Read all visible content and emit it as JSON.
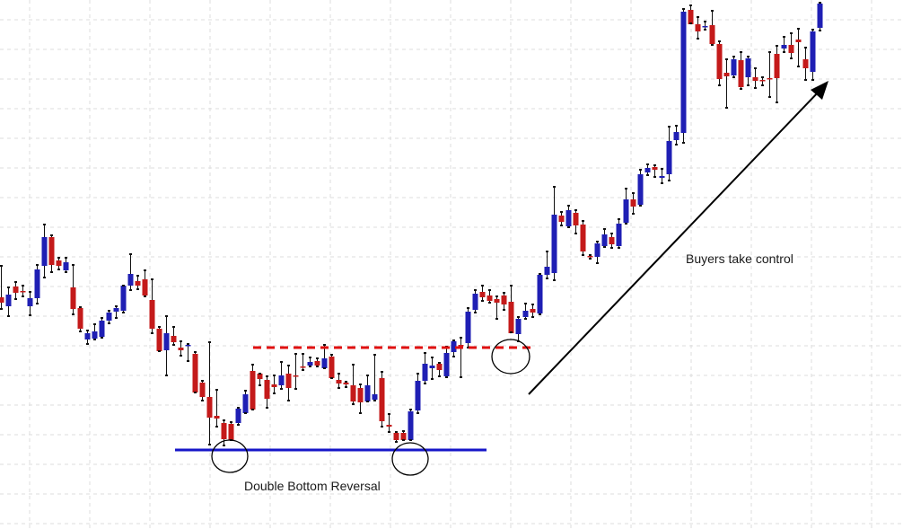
{
  "chart_data": {
    "type": "candlestick",
    "colors": {
      "up": "#1f1fb4",
      "down": "#c41a1a",
      "wick": "#111111",
      "grid": "#dcdcdc",
      "support": "#1616c8",
      "resistance": "#e01010",
      "arrow": "#000000"
    },
    "grid": true,
    "ylim": [
      0,
      589
    ],
    "annotations": {
      "double_bottom": "Double Bottom Reversal",
      "buyers": "Buyers take control"
    },
    "levels": {
      "support": 501,
      "neckline": 387
    },
    "candles": [
      [
        1,
        331,
        296,
        344,
        337
      ],
      [
        9,
        341,
        320,
        352,
        328
      ],
      [
        17,
        319,
        314,
        333,
        326
      ],
      [
        25,
        324,
        318,
        330,
        325
      ],
      [
        33,
        341,
        325,
        351,
        332
      ],
      [
        41,
        332,
        295,
        338,
        300
      ],
      [
        49,
        296,
        250,
        309,
        264
      ],
      [
        57,
        264,
        262,
        303,
        295
      ],
      [
        65,
        290,
        287,
        300,
        296
      ],
      [
        73,
        301,
        287,
        303,
        292
      ],
      [
        81,
        320,
        295,
        350,
        344
      ],
      [
        89,
        343,
        342,
        369,
        366
      ],
      [
        97,
        378,
        368,
        383,
        371
      ],
      [
        105,
        377,
        361,
        378,
        369
      ],
      [
        113,
        375,
        354,
        376,
        357
      ],
      [
        121,
        357,
        346,
        360,
        348
      ],
      [
        129,
        347,
        341,
        354,
        343
      ],
      [
        137,
        346,
        318,
        348,
        318
      ],
      [
        145,
        318,
        283,
        323,
        305
      ],
      [
        153,
        313,
        307,
        322,
        318
      ],
      [
        161,
        311,
        301,
        330,
        329
      ],
      [
        169,
        334,
        311,
        371,
        366
      ],
      [
        177,
        366,
        364,
        391,
        391
      ],
      [
        185,
        390,
        352,
        418,
        371
      ],
      [
        193,
        374,
        364,
        384,
        381
      ],
      [
        201,
        387,
        380,
        396,
        390
      ],
      [
        209,
        385,
        383,
        402,
        384
      ],
      [
        217,
        394,
        392,
        437,
        437
      ],
      [
        225,
        426,
        424,
        446,
        442
      ],
      [
        233,
        442,
        381,
        495,
        465
      ],
      [
        241,
        463,
        434,
        475,
        466
      ],
      [
        249,
        471,
        468,
        496,
        489
      ],
      [
        257,
        472,
        470,
        490,
        490
      ],
      [
        265,
        471,
        454,
        473,
        455
      ],
      [
        273,
        460,
        435,
        460,
        439
      ],
      [
        281,
        413,
        406,
        456,
        456
      ],
      [
        289,
        416,
        416,
        429,
        422
      ],
      [
        297,
        423,
        419,
        454,
        444
      ],
      [
        305,
        428,
        418,
        438,
        431
      ],
      [
        313,
        429,
        403,
        433,
        418
      ],
      [
        321,
        416,
        407,
        446,
        432
      ],
      [
        329,
        418,
        394,
        433,
        418
      ],
      [
        337,
        408,
        394,
        412,
        409
      ],
      [
        345,
        407,
        398,
        408,
        403
      ],
      [
        353,
        402,
        399,
        408,
        407
      ],
      [
        361,
        410,
        384,
        410,
        399
      ],
      [
        369,
        397,
        395,
        421,
        421
      ],
      [
        377,
        423,
        416,
        432,
        427
      ],
      [
        385,
        426,
        425,
        431,
        428
      ],
      [
        393,
        429,
        406,
        450,
        447
      ],
      [
        401,
        432,
        428,
        460,
        448
      ],
      [
        409,
        447,
        418,
        447,
        429
      ],
      [
        417,
        445,
        395,
        446,
        439
      ],
      [
        425,
        421,
        414,
        475,
        469
      ],
      [
        433,
        473,
        461,
        481,
        475
      ],
      [
        441,
        482,
        481,
        492,
        490
      ],
      [
        449,
        482,
        480,
        490,
        490
      ],
      [
        457,
        490,
        456,
        490,
        458
      ],
      [
        465,
        457,
        416,
        460,
        424
      ],
      [
        473,
        424,
        393,
        427,
        405
      ],
      [
        481,
        410,
        398,
        422,
        407
      ],
      [
        489,
        405,
        404,
        419,
        412
      ],
      [
        497,
        419,
        386,
        420,
        393
      ],
      [
        505,
        392,
        379,
        397,
        380
      ],
      [
        513,
        384,
        376,
        420,
        385
      ],
      [
        521,
        382,
        343,
        387,
        347
      ],
      [
        529,
        345,
        323,
        348,
        327
      ],
      [
        537,
        325,
        318,
        335,
        331
      ],
      [
        545,
        329,
        323,
        337,
        335
      ],
      [
        553,
        333,
        330,
        355,
        337
      ],
      [
        561,
        329,
        326,
        345,
        339
      ],
      [
        569,
        336,
        318,
        370,
        371
      ],
      [
        577,
        372,
        353,
        380,
        355
      ],
      [
        585,
        353,
        338,
        355,
        346
      ],
      [
        593,
        344,
        339,
        353,
        348
      ],
      [
        601,
        349,
        305,
        350,
        306
      ],
      [
        609,
        306,
        280,
        310,
        297
      ],
      [
        617,
        304,
        208,
        312,
        239
      ],
      [
        625,
        240,
        236,
        251,
        247
      ],
      [
        633,
        252,
        229,
        253,
        234
      ],
      [
        641,
        237,
        234,
        260,
        251
      ],
      [
        649,
        250,
        246,
        284,
        280
      ],
      [
        657,
        285,
        284,
        288,
        285
      ],
      [
        665,
        286,
        269,
        293,
        271
      ],
      [
        673,
        274,
        255,
        275,
        261
      ],
      [
        681,
        264,
        260,
        276,
        272
      ],
      [
        689,
        274,
        244,
        276,
        249
      ],
      [
        697,
        248,
        210,
        249,
        222
      ],
      [
        705,
        222,
        215,
        238,
        230
      ],
      [
        713,
        228,
        189,
        229,
        194
      ],
      [
        721,
        192,
        183,
        195,
        187
      ],
      [
        729,
        186,
        184,
        197,
        189
      ],
      [
        737,
        198,
        188,
        204,
        196
      ],
      [
        745,
        194,
        141,
        201,
        157
      ],
      [
        753,
        156,
        140,
        161,
        147
      ],
      [
        761,
        148,
        10,
        159,
        13
      ],
      [
        769,
        11,
        6,
        26,
        27
      ],
      [
        777,
        27,
        19,
        43,
        35
      ],
      [
        785,
        30,
        24,
        33,
        29
      ],
      [
        793,
        28,
        12,
        50,
        49
      ],
      [
        801,
        49,
        46,
        95,
        88
      ],
      [
        809,
        81,
        66,
        120,
        85
      ],
      [
        817,
        84,
        63,
        86,
        66
      ],
      [
        825,
        67,
        58,
        99,
        97
      ],
      [
        833,
        86,
        63,
        95,
        65
      ],
      [
        841,
        86,
        76,
        98,
        90
      ],
      [
        849,
        89,
        86,
        95,
        89
      ],
      [
        857,
        87,
        58,
        108,
        87
      ],
      [
        865,
        60,
        51,
        114,
        87
      ],
      [
        873,
        54,
        41,
        58,
        50
      ],
      [
        881,
        50,
        37,
        65,
        59
      ],
      [
        889,
        44,
        32,
        74,
        47
      ],
      [
        897,
        66,
        53,
        89,
        76
      ],
      [
        905,
        80,
        33,
        89,
        35
      ],
      [
        913,
        31,
        3,
        34,
        4
      ]
    ]
  }
}
